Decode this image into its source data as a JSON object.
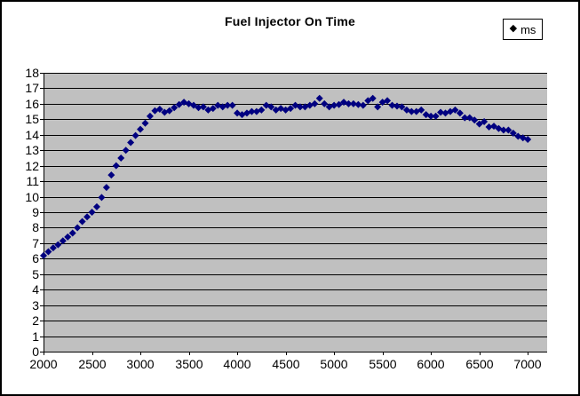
{
  "chart": {
    "title": "Fuel Injector On Time",
    "legend": {
      "items": [
        {
          "label": "ms",
          "marker": "diamond",
          "color": "#000080"
        }
      ]
    }
  },
  "chart_data": {
    "type": "scatter",
    "title": "Fuel Injector On Time",
    "xlabel": "",
    "ylabel": "",
    "xlim": [
      2000,
      7200
    ],
    "ylim": [
      0,
      18
    ],
    "x_ticks": [
      2000,
      2500,
      3000,
      3500,
      4000,
      4500,
      5000,
      5500,
      6000,
      6500,
      7000
    ],
    "y_tick_step": 1,
    "grid": "horizontal",
    "plot_bg": "#c0c0c0",
    "gridline_color": "#000000",
    "legend_position": "top-right",
    "series": [
      {
        "name": "ms",
        "color": "#000080",
        "marker": "diamond",
        "x": [
          2000,
          2050,
          2100,
          2150,
          2200,
          2250,
          2300,
          2350,
          2400,
          2450,
          2500,
          2550,
          2600,
          2650,
          2700,
          2750,
          2800,
          2850,
          2900,
          2950,
          3000,
          3050,
          3100,
          3150,
          3200,
          3250,
          3300,
          3350,
          3400,
          3450,
          3500,
          3550,
          3600,
          3650,
          3700,
          3750,
          3800,
          3850,
          3900,
          3950,
          4000,
          4050,
          4100,
          4150,
          4200,
          4250,
          4300,
          4350,
          4400,
          4450,
          4500,
          4550,
          4600,
          4650,
          4700,
          4750,
          4800,
          4850,
          4900,
          4950,
          5000,
          5050,
          5100,
          5150,
          5200,
          5250,
          5300,
          5350,
          5400,
          5450,
          5500,
          5550,
          5600,
          5650,
          5700,
          5750,
          5800,
          5850,
          5900,
          5950,
          6000,
          6050,
          6100,
          6150,
          6200,
          6250,
          6300,
          6350,
          6400,
          6450,
          6500,
          6550,
          6600,
          6650,
          6700,
          6750,
          6800,
          6850,
          6900,
          6950,
          7000
        ],
        "y": [
          6.2,
          6.45,
          6.7,
          6.9,
          7.15,
          7.4,
          7.65,
          8.0,
          8.4,
          8.7,
          9.0,
          9.35,
          9.95,
          10.6,
          11.4,
          12.0,
          12.5,
          13.0,
          13.5,
          13.95,
          14.35,
          14.75,
          15.2,
          15.55,
          15.65,
          15.45,
          15.55,
          15.75,
          15.95,
          16.1,
          16.0,
          15.9,
          15.75,
          15.8,
          15.6,
          15.7,
          15.9,
          15.8,
          15.9,
          15.9,
          15.4,
          15.3,
          15.4,
          15.5,
          15.5,
          15.6,
          15.9,
          15.8,
          15.6,
          15.7,
          15.6,
          15.7,
          15.9,
          15.8,
          15.8,
          15.9,
          16.0,
          16.35,
          16.0,
          15.8,
          15.9,
          15.95,
          16.1,
          16.0,
          16.0,
          15.95,
          15.9,
          16.2,
          16.35,
          15.8,
          16.1,
          16.2,
          15.9,
          15.85,
          15.8,
          15.6,
          15.5,
          15.5,
          15.6,
          15.3,
          15.2,
          15.2,
          15.45,
          15.4,
          15.5,
          15.6,
          15.4,
          15.1,
          15.1,
          14.95,
          14.7,
          14.85,
          14.5,
          14.55,
          14.4,
          14.3,
          14.3,
          14.1,
          13.9,
          13.8,
          13.7
        ]
      }
    ]
  }
}
